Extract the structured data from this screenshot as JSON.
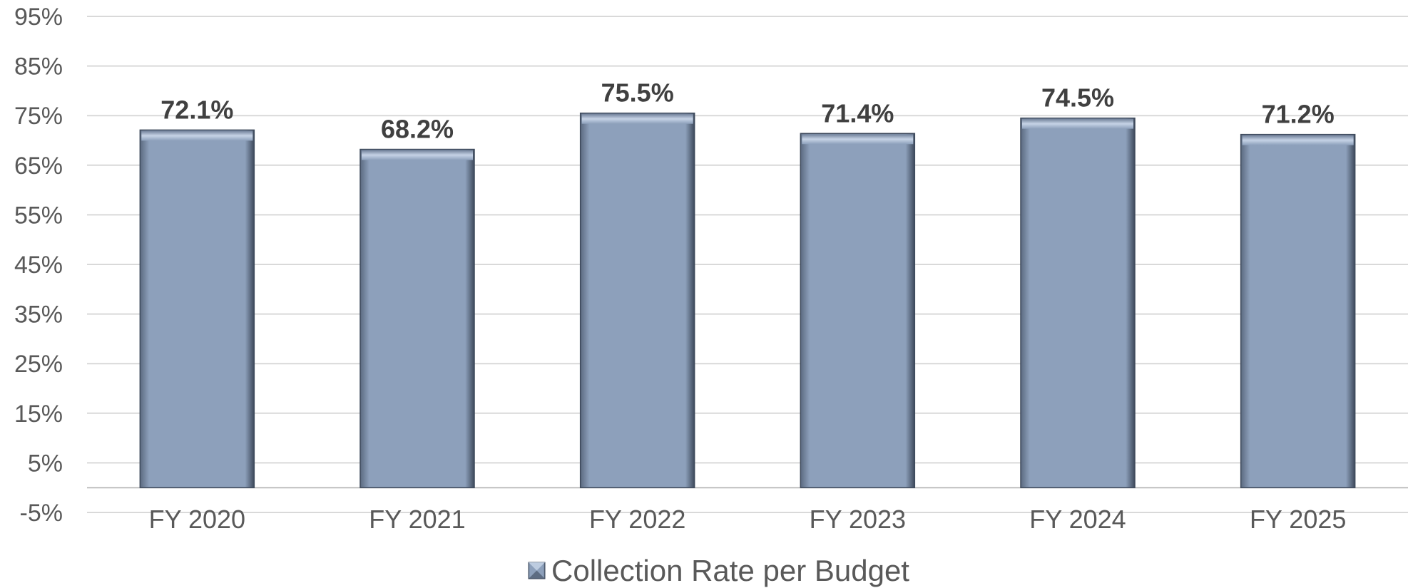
{
  "chart_data": {
    "type": "bar",
    "categories": [
      "FY 2020",
      "FY 2021",
      "FY 2022",
      "FY 2023",
      "FY 2024",
      "FY 2025"
    ],
    "series": [
      {
        "name": "Collection Rate per Budget",
        "values": [
          72.1,
          68.2,
          75.5,
          71.4,
          74.5,
          71.2
        ]
      }
    ],
    "data_labels": [
      "72.1%",
      "68.2%",
      "75.5%",
      "71.4%",
      "74.5%",
      "71.2%"
    ],
    "y_ticks": [
      -5,
      5,
      15,
      25,
      35,
      45,
      55,
      65,
      75,
      85,
      95
    ],
    "y_tick_labels": [
      "-5%",
      "5%",
      "15%",
      "25%",
      "35%",
      "45%",
      "55%",
      "65%",
      "75%",
      "85%",
      "95%"
    ],
    "ylim": [
      -5,
      95
    ],
    "baseline": 0,
    "grid": true,
    "legend_position": "bottom",
    "title": "",
    "xlabel": "",
    "ylabel": "",
    "colors": {
      "bar": "#8da0bb",
      "bar_dark": "#3e4a5c",
      "bar_light": "#c6d3e6",
      "grid": "#d9d9d9",
      "text": "#595959",
      "label": "#404040"
    }
  },
  "legend": {
    "label": "Collection Rate per Budget",
    "icon": "bar-swatch-icon"
  }
}
